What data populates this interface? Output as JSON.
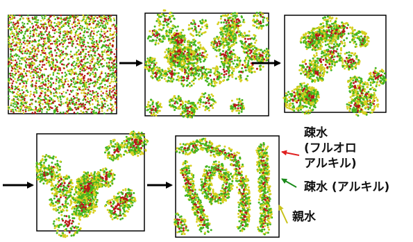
{
  "colors": {
    "hydrophilic": "#d6cf1e",
    "hydrophobic_alkyl": "#44b51f",
    "hydrophobic_fluoroalkyl": "#b81818",
    "frame": "#000000",
    "arrow": "#000000",
    "label_arrow_red": "#e02020",
    "label_arrow_green": "#1a8a1a",
    "label_arrow_yellow": "#c8c21a"
  },
  "legend": {
    "fluoro_line1": "疎水",
    "fluoro_line2": "(フルオロ",
    "fluoro_line3": "アルキル)",
    "alkyl": "疎水 (アルキル)",
    "hydrophilic": "親水"
  },
  "panels": [
    {
      "stage": 1,
      "pattern": "homogeneous mixture"
    },
    {
      "stage": 2,
      "pattern": "small clusters"
    },
    {
      "stage": 3,
      "pattern": "growing clusters"
    },
    {
      "stage": 4,
      "pattern": "larger domains"
    },
    {
      "stage": 5,
      "pattern": "network / stripes"
    }
  ],
  "flow_arrows": [
    "→",
    "→",
    "→",
    "→"
  ]
}
